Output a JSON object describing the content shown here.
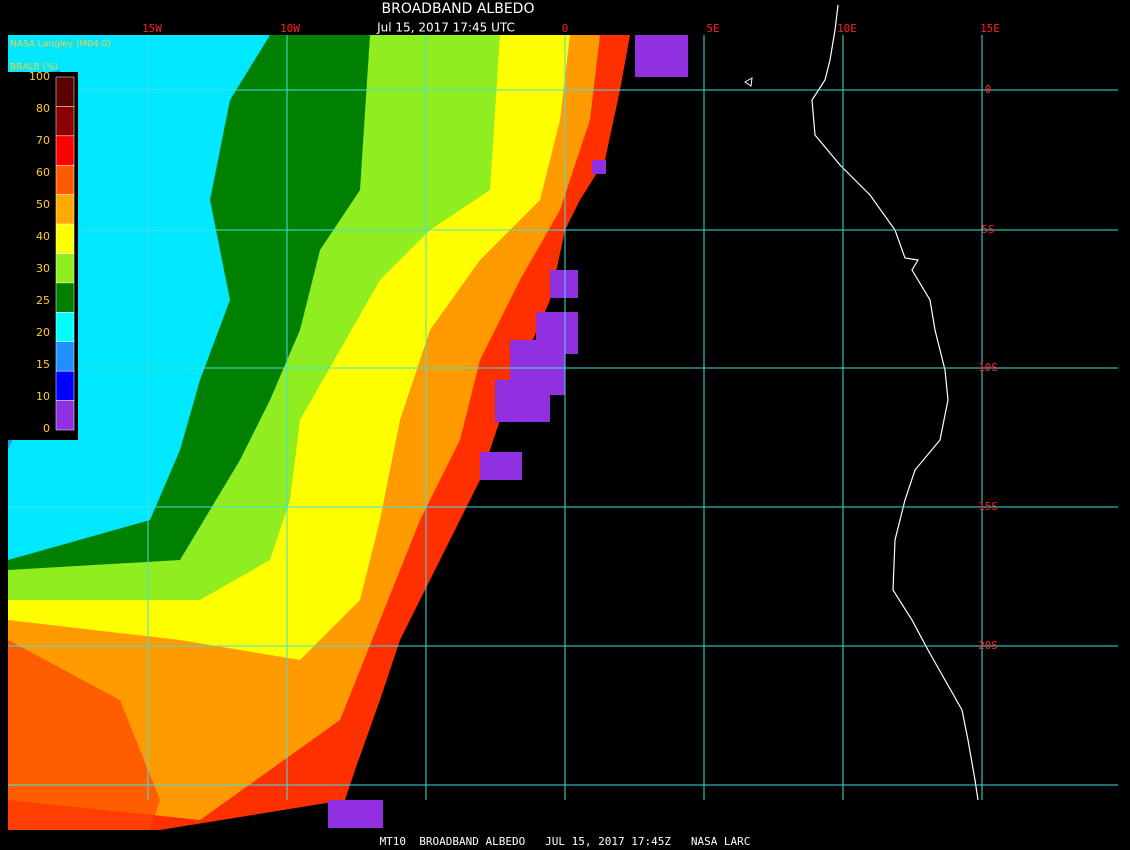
{
  "header": {
    "title": "BROADBAND ALBEDO",
    "timestamp": "Jul 15, 2017 17:45 UTC",
    "source": "NASA Langley (M04.0)"
  },
  "legend": {
    "title": "BBALB (%)",
    "labels": [
      "100",
      "80",
      "70",
      "60",
      "50",
      "40",
      "30",
      "25",
      "20",
      "15",
      "10",
      "0"
    ],
    "colors": [
      "#5a0000",
      "#8b0000",
      "#ff0000",
      "#ff5a00",
      "#ffaa00",
      "#ffff00",
      "#90ee20",
      "#008000",
      "#00ffff",
      "#1e90ff",
      "#0000ff",
      "#9030e0"
    ]
  },
  "grid": {
    "lon_labels": [
      "15W",
      "10W",
      "0",
      "5E",
      "10E",
      "15E"
    ],
    "lat_labels": [
      "0",
      "5S",
      "10S",
      "15S",
      "20S"
    ]
  },
  "footer": "MT10  BROADBAND ALBEDO   JUL 15, 2017 17:45Z   NASA LARC"
}
